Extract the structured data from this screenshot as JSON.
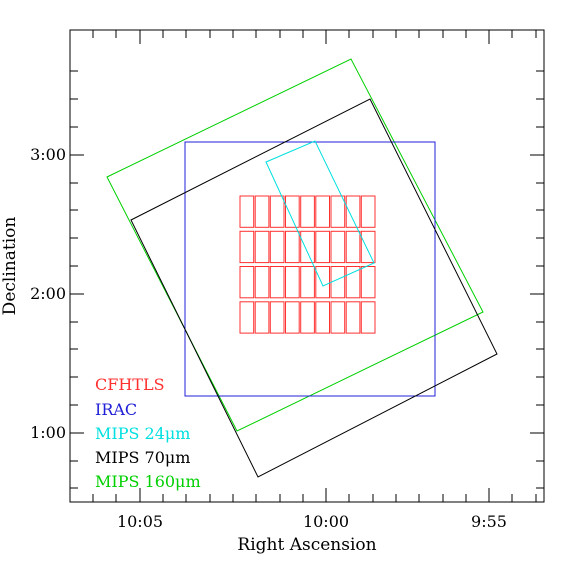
{
  "chart_data": {
    "type": "footprint-map",
    "xlabel": "Right Ascension",
    "ylabel": "Declination",
    "x_ticks": [
      "10:05",
      "10:00",
      "9:55"
    ],
    "y_ticks": [
      "1:00",
      "2:00",
      "3:00"
    ],
    "legend": [
      {
        "label": "CFHTLS",
        "color": "#ff3030"
      },
      {
        "label": "IRAC",
        "color": "#2020d8"
      },
      {
        "label": "MIPS 24μm",
        "color": "#00e0e0"
      },
      {
        "label": "MIPS 70μm",
        "color": "#000000"
      },
      {
        "label": "MIPS 160μm",
        "color": "#00d000"
      }
    ],
    "cfhtls_grid": {
      "rows": 4,
      "cols": 9,
      "color": "#ff3030"
    }
  }
}
